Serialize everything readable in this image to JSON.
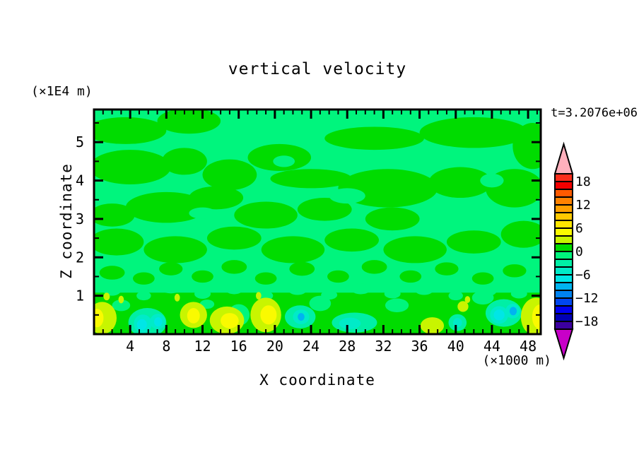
{
  "title": "vertical velocity",
  "annotations": {
    "time_label": "t=3.2076e+06",
    "z_unit_label": "(×1E4 m)",
    "x_unit_label": "(×1000 m)"
  },
  "chart_data": {
    "type": "filled-contour",
    "title": "vertical velocity",
    "field_name": "vertical velocity",
    "time_annotation": "t=3.2076e+06",
    "xlabel": "X coordinate",
    "x_unit": "(×1000 m)",
    "xlim": [
      0,
      49.4
    ],
    "x_major_ticks": [
      4,
      8,
      12,
      16,
      20,
      24,
      28,
      32,
      36,
      40,
      44,
      48
    ],
    "x_minor_step": 1,
    "zlabel": "Z coordinate",
    "z_unit": "(×1E4 m)",
    "zlim": [
      0,
      5.85
    ],
    "z_major_ticks": [
      1,
      2,
      3,
      4,
      5
    ],
    "z_minor_step": 0.5,
    "grid": false,
    "colorbar": {
      "position": "right",
      "min": -20,
      "max": 20,
      "step": 2,
      "tick_values": [
        18,
        12,
        6,
        0,
        -6,
        -12,
        -18
      ],
      "tick_labels": [
        "18",
        "12",
        "6",
        "0",
        "−6",
        "−12",
        "−18"
      ],
      "colors_top_to_bottom": [
        "#FB2D1B",
        "#F20000",
        "#FF5A00",
        "#FF8200",
        "#FFA000",
        "#FFC800",
        "#FFE600",
        "#FAFA00",
        "#C8F500",
        "#00DC00",
        "#00F57D",
        "#00EFA5",
        "#00EBC8",
        "#00E6E6",
        "#00B4F0",
        "#0082F0",
        "#0046F0",
        "#0000F0",
        "#0000B4",
        "#3C00A0"
      ],
      "over_color": "#FFB0BC",
      "under_color": "#C800C8"
    },
    "background_band": {
      "level": -2,
      "color": "#00F57D"
    },
    "regions": [
      {
        "shape": "rect",
        "l": 0,
        "x0": 0,
        "x1": 49.4,
        "z0": 0,
        "z1": 1.08
      },
      {
        "l": 0,
        "x": 3.5,
        "z": 5.3,
        "rx": 4.5,
        "rz": 0.35
      },
      {
        "l": 0,
        "x": 10.5,
        "z": 5.55,
        "rx": 3.5,
        "rz": 0.33
      },
      {
        "l": 0,
        "x": 31,
        "z": 5.1,
        "rx": 5.5,
        "rz": 0.3
      },
      {
        "l": 0,
        "x": 42,
        "z": 5.25,
        "rx": 6,
        "rz": 0.4
      },
      {
        "l": 0,
        "x": 48.5,
        "z": 4.9,
        "rx": 2.2,
        "rz": 0.6
      },
      {
        "l": 0,
        "x": 4,
        "z": 4.35,
        "rx": 4.5,
        "rz": 0.45
      },
      {
        "l": 0,
        "x": 10,
        "z": 4.5,
        "rx": 2.5,
        "rz": 0.35
      },
      {
        "l": 0,
        "x": 15,
        "z": 4.15,
        "rx": 3,
        "rz": 0.4
      },
      {
        "l": 0,
        "x": 20.5,
        "z": 4.6,
        "rx": 3.5,
        "rz": 0.35
      },
      {
        "l": 0,
        "x": 24,
        "z": 4.05,
        "rx": 4.5,
        "rz": 0.25
      },
      {
        "l": 0,
        "x": 32.5,
        "z": 3.8,
        "rx": 5.5,
        "rz": 0.5
      },
      {
        "l": 0,
        "x": 40.5,
        "z": 3.95,
        "rx": 3.5,
        "rz": 0.4
      },
      {
        "l": 0,
        "x": 46.5,
        "z": 3.8,
        "rx": 3.2,
        "rz": 0.5
      },
      {
        "l": 0,
        "x": 2,
        "z": 3.1,
        "rx": 2.5,
        "rz": 0.3
      },
      {
        "l": 0,
        "x": 8,
        "z": 3.3,
        "rx": 4.5,
        "rz": 0.4
      },
      {
        "l": 0,
        "x": 13.5,
        "z": 3.55,
        "rx": 3,
        "rz": 0.3
      },
      {
        "l": 0,
        "x": 19,
        "z": 3.1,
        "rx": 3.5,
        "rz": 0.35
      },
      {
        "l": 0,
        "x": 25.5,
        "z": 3.25,
        "rx": 3,
        "rz": 0.3
      },
      {
        "l": 0,
        "x": 33,
        "z": 3.0,
        "rx": 3,
        "rz": 0.3
      },
      {
        "l": 0,
        "x": 2.5,
        "z": 2.4,
        "rx": 3,
        "rz": 0.35
      },
      {
        "l": 0,
        "x": 9,
        "z": 2.2,
        "rx": 3.5,
        "rz": 0.35
      },
      {
        "l": 0,
        "x": 15.5,
        "z": 2.5,
        "rx": 3,
        "rz": 0.3
      },
      {
        "l": 0,
        "x": 22,
        "z": 2.2,
        "rx": 3.5,
        "rz": 0.35
      },
      {
        "l": 0,
        "x": 28.5,
        "z": 2.45,
        "rx": 3,
        "rz": 0.3
      },
      {
        "l": 0,
        "x": 35.5,
        "z": 2.2,
        "rx": 3.5,
        "rz": 0.35
      },
      {
        "l": 0,
        "x": 42,
        "z": 2.4,
        "rx": 3,
        "rz": 0.3
      },
      {
        "l": 0,
        "x": 47.5,
        "z": 2.6,
        "rx": 2.5,
        "rz": 0.35
      },
      {
        "l": 0,
        "x": 2,
        "z": 1.6,
        "rx": 1.4,
        "rz": 0.18
      },
      {
        "l": 0,
        "x": 5.5,
        "z": 1.45,
        "rx": 1.2,
        "rz": 0.16
      },
      {
        "l": 0,
        "x": 8.5,
        "z": 1.7,
        "rx": 1.3,
        "rz": 0.17
      },
      {
        "l": 0,
        "x": 12,
        "z": 1.5,
        "rx": 1.2,
        "rz": 0.16
      },
      {
        "l": 0,
        "x": 15.5,
        "z": 1.75,
        "rx": 1.4,
        "rz": 0.18
      },
      {
        "l": 0,
        "x": 19,
        "z": 1.45,
        "rx": 1.2,
        "rz": 0.16
      },
      {
        "l": 0,
        "x": 23,
        "z": 1.7,
        "rx": 1.4,
        "rz": 0.18
      },
      {
        "l": 0,
        "x": 27,
        "z": 1.5,
        "rx": 1.2,
        "rz": 0.16
      },
      {
        "l": 0,
        "x": 31,
        "z": 1.75,
        "rx": 1.4,
        "rz": 0.18
      },
      {
        "l": 0,
        "x": 35,
        "z": 1.5,
        "rx": 1.2,
        "rz": 0.16
      },
      {
        "l": 0,
        "x": 39,
        "z": 1.7,
        "rx": 1.3,
        "rz": 0.17
      },
      {
        "l": 0,
        "x": 43,
        "z": 1.45,
        "rx": 1.2,
        "rz": 0.16
      },
      {
        "l": 0,
        "x": 46.5,
        "z": 1.65,
        "rx": 1.3,
        "rz": 0.17
      },
      {
        "l": -2,
        "x": 28,
        "z": 3.6,
        "rx": 2,
        "rz": 0.2
      },
      {
        "l": -2,
        "x": 12,
        "z": 3.15,
        "rx": 1.5,
        "rz": 0.15
      },
      {
        "l": -2,
        "x": 21,
        "z": 4.5,
        "rx": 1.2,
        "rz": 0.15
      },
      {
        "l": -2,
        "x": 44,
        "z": 4.0,
        "rx": 1.3,
        "rz": 0.18
      },
      {
        "l": -2,
        "x": 2,
        "z": 1.15,
        "rx": 1.0,
        "rz": 0.15
      },
      {
        "l": -2,
        "x": 5.5,
        "z": 1.0,
        "rx": 0.8,
        "rz": 0.12
      },
      {
        "l": -2,
        "x": 8.5,
        "z": 1.2,
        "rx": 1.1,
        "rz": 0.14
      },
      {
        "l": -2,
        "x": 12,
        "z": 1.05,
        "rx": 0.9,
        "rz": 0.13
      },
      {
        "l": -2,
        "x": 15.5,
        "z": 1.18,
        "rx": 1.0,
        "rz": 0.14
      },
      {
        "l": -2,
        "x": 19,
        "z": 1.0,
        "rx": 0.8,
        "rz": 0.12
      },
      {
        "l": -2,
        "x": 22.5,
        "z": 1.15,
        "rx": 1.0,
        "rz": 0.13
      },
      {
        "l": -2,
        "x": 26,
        "z": 1.02,
        "rx": 0.9,
        "rz": 0.12
      },
      {
        "l": -2,
        "x": 29.5,
        "z": 1.18,
        "rx": 1.1,
        "rz": 0.14
      },
      {
        "l": -2,
        "x": 33,
        "z": 1.05,
        "rx": 0.9,
        "rz": 0.12
      },
      {
        "l": -2,
        "x": 36.5,
        "z": 1.15,
        "rx": 1.0,
        "rz": 0.13
      },
      {
        "l": -2,
        "x": 40,
        "z": 1.0,
        "rx": 0.8,
        "rz": 0.12
      },
      {
        "l": -2,
        "x": 43.5,
        "z": 1.12,
        "rx": 1.0,
        "rz": 0.13
      },
      {
        "l": -2,
        "x": 47,
        "z": 1.05,
        "rx": 0.9,
        "rz": 0.12
      },
      {
        "l": -2,
        "x": 3,
        "z": 0.75,
        "rx": 1.0,
        "rz": 0.15
      },
      {
        "l": -2,
        "x": 16,
        "z": 0.5,
        "rx": 1.2,
        "rz": 0.28
      },
      {
        "l": -2,
        "x": 25,
        "z": 0.8,
        "rx": 1.2,
        "rz": 0.2
      },
      {
        "l": -2,
        "x": 33.5,
        "z": 0.75,
        "rx": 1.3,
        "rz": 0.18
      },
      {
        "l": -2,
        "x": 12.5,
        "z": 0.78,
        "rx": 0.8,
        "rz": 0.12
      },
      {
        "l": -2,
        "x": 43,
        "z": 0.95,
        "rx": 1.2,
        "rz": 0.18
      },
      {
        "l": 2,
        "x": 0.9,
        "z": 0.42,
        "rx": 1.6,
        "rz": 0.42
      },
      {
        "l": 4,
        "x": 0.35,
        "z": 0.42,
        "rx": 0.7,
        "rz": 0.24
      },
      {
        "l": 2,
        "x": 1.4,
        "z": 0.98,
        "rx": 0.35,
        "rz": 0.1
      },
      {
        "l": 2,
        "x": 3.0,
        "z": 0.9,
        "rx": 0.3,
        "rz": 0.1
      },
      {
        "l": -4,
        "x": 5.9,
        "z": 0.3,
        "rx": 2.1,
        "rz": 0.38
      },
      {
        "l": -6,
        "x": 5.4,
        "z": 0.27,
        "rx": 1.0,
        "rz": 0.24
      },
      {
        "l": -6,
        "x": 7.05,
        "z": 0.33,
        "rx": 0.85,
        "rz": 0.2
      },
      {
        "l": -8,
        "x": 5.3,
        "z": 0.25,
        "rx": 0.55,
        "rz": 0.14
      },
      {
        "l": -8,
        "x": 7.1,
        "z": 0.32,
        "rx": 0.45,
        "rz": 0.12
      },
      {
        "l": 2,
        "x": 11.0,
        "z": 0.5,
        "rx": 1.5,
        "rz": 0.34
      },
      {
        "l": 4,
        "x": 11.0,
        "z": 0.48,
        "rx": 0.7,
        "rz": 0.2
      },
      {
        "l": 2,
        "x": 9.2,
        "z": 0.95,
        "rx": 0.3,
        "rz": 0.1
      },
      {
        "l": 2,
        "x": 14.7,
        "z": 0.36,
        "rx": 1.9,
        "rz": 0.36
      },
      {
        "l": 4,
        "x": 15.0,
        "z": 0.35,
        "rx": 1.0,
        "rz": 0.2
      },
      {
        "l": 2,
        "x": 19.0,
        "z": 0.5,
        "rx": 1.7,
        "rz": 0.45
      },
      {
        "l": 4,
        "x": 19.3,
        "z": 0.5,
        "rx": 0.9,
        "rz": 0.25
      },
      {
        "l": 2,
        "x": 18.2,
        "z": 1.0,
        "rx": 0.3,
        "rz": 0.1
      },
      {
        "l": -4,
        "x": 22.8,
        "z": 0.45,
        "rx": 1.7,
        "rz": 0.3
      },
      {
        "l": -6,
        "x": 22.9,
        "z": 0.45,
        "rx": 0.9,
        "rz": 0.19
      },
      {
        "l": -10,
        "x": 22.9,
        "z": 0.45,
        "rx": 0.38,
        "rz": 0.1
      },
      {
        "l": -4,
        "x": 28.8,
        "z": 0.3,
        "rx": 2.5,
        "rz": 0.26
      },
      {
        "l": -6,
        "x": 28.3,
        "z": 0.28,
        "rx": 1.2,
        "rz": 0.15
      },
      {
        "l": 2,
        "x": 37.4,
        "z": 0.22,
        "rx": 1.3,
        "rz": 0.22
      },
      {
        "l": -4,
        "x": 40.2,
        "z": 0.3,
        "rx": 1.0,
        "rz": 0.22
      },
      {
        "l": -6,
        "x": 40.2,
        "z": 0.3,
        "rx": 0.5,
        "rz": 0.12
      },
      {
        "l": 2,
        "x": 40.8,
        "z": 0.72,
        "rx": 0.6,
        "rz": 0.14
      },
      {
        "l": 2,
        "x": 41.3,
        "z": 0.9,
        "rx": 0.3,
        "rz": 0.09
      },
      {
        "l": -4,
        "x": 45.3,
        "z": 0.55,
        "rx": 2.0,
        "rz": 0.36
      },
      {
        "l": -6,
        "x": 44.8,
        "z": 0.5,
        "rx": 1.0,
        "rz": 0.23
      },
      {
        "l": -6,
        "x": 46.3,
        "z": 0.6,
        "rx": 0.8,
        "rz": 0.19
      },
      {
        "l": -8,
        "x": 44.8,
        "z": 0.5,
        "rx": 0.6,
        "rz": 0.14
      },
      {
        "l": -10,
        "x": 46.35,
        "z": 0.6,
        "rx": 0.4,
        "rz": 0.11
      },
      {
        "l": 2,
        "x": 48.9,
        "z": 0.45,
        "rx": 1.7,
        "rz": 0.5
      },
      {
        "l": 4,
        "x": 49.3,
        "z": 0.45,
        "rx": 0.85,
        "rz": 0.32
      }
    ]
  }
}
